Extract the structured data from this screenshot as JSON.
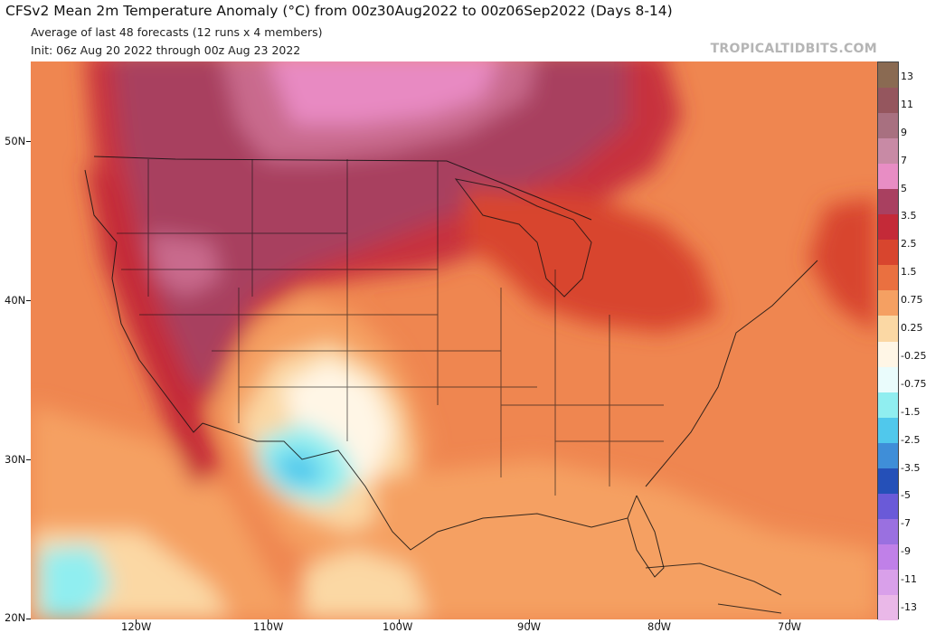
{
  "header": {
    "title": "CFSv2 Mean 2m Temperature Anomaly (°C) from 00z30Aug2022 to 00z06Sep2022 (Days 8-14)",
    "subtitle1": "Average of last 48 forecasts (12 runs x 4 members)",
    "subtitle2": "Init: 06z Aug 20 2022 through 00z Aug 23 2022",
    "credit": "TROPICALTIDBITS.COM"
  },
  "map": {
    "lat_labels": [
      "50N",
      "40N",
      "30N",
      "20N"
    ],
    "lon_labels": [
      "120W",
      "110W",
      "100W",
      "90W",
      "80W",
      "70W"
    ]
  },
  "colorbar": {
    "labels": [
      "13",
      "11",
      "9",
      "7",
      "5",
      "3.5",
      "2.5",
      "1.5",
      "0.75",
      "0.25",
      "-0.25",
      "-0.75",
      "-1.5",
      "-2.5",
      "-3.5",
      "-5",
      "-7",
      "-9",
      "-11",
      "-13"
    ],
    "colors": [
      "#8a6a52",
      "#95565e",
      "#a87080",
      "#c88aa5",
      "#e88dc4",
      "#a94060",
      "#c42a38",
      "#d8452e",
      "#ea7040",
      "#f5a062",
      "#fbd8a4",
      "#fff6e6",
      "#eafcfc",
      "#90eef0",
      "#50c8ec",
      "#3f8ed8",
      "#2550b8",
      "#6a5ad8",
      "#9a70e0",
      "#c080e8",
      "#d9a0ea",
      "#eab8e8"
    ]
  }
}
